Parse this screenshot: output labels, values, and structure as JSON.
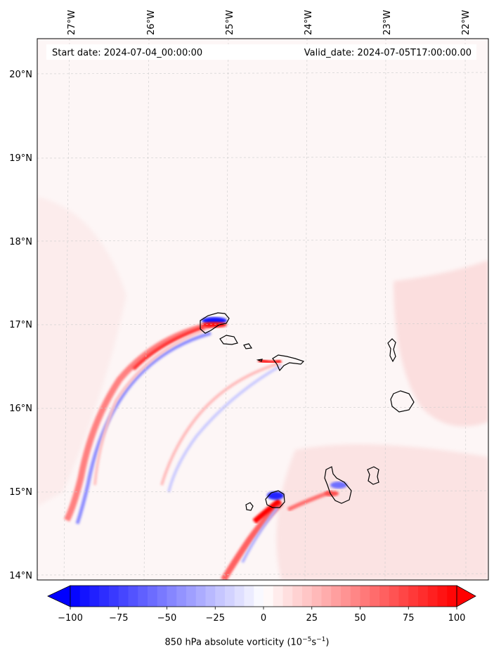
{
  "header": {
    "start_date": "Start date: 2024-07-04_00:00:00",
    "valid_date": "Valid_date: 2024-07-05T17:00:00.00"
  },
  "map": {
    "projection": "lambert-conformal",
    "top_labels": [
      "27°W",
      "26°W",
      "25°W",
      "24°W",
      "23°W",
      "22°W"
    ],
    "left_labels": [
      "20°N",
      "19°N",
      "18°N",
      "17°N",
      "16°N",
      "15°N",
      "14°N"
    ],
    "islands": [
      "Santo Antão",
      "São Vicente",
      "Santa Luzia",
      "São Nicolau",
      "Sal",
      "Boa Vista",
      "Maio",
      "Santiago",
      "Fogo",
      "Brava"
    ],
    "background_color": "#fdf6f6"
  },
  "colorbar": {
    "ticks": [
      "−100",
      "−75",
      "−50",
      "−25",
      "0",
      "25",
      "50",
      "75",
      "100"
    ],
    "label_prefix": "850 hPa absolute vorticity (10",
    "label_exp1": "−5",
    "label_mid": "s",
    "label_exp2": "−1",
    "label_suffix": ")",
    "colormap": "bwr",
    "min": -100,
    "max": 100,
    "extend": "both",
    "colors": {
      "low": "#0000ff",
      "mid": "#ffffff",
      "high": "#ff0000"
    }
  }
}
